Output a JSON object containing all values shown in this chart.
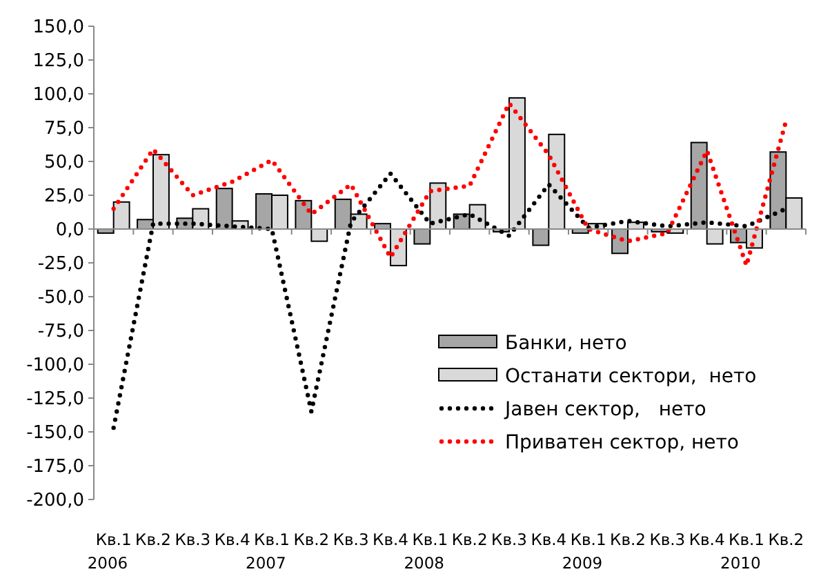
{
  "chart_data": {
    "type": "bar",
    "categories": [
      "Кв.1\n2006",
      "Кв.2",
      "Кв.3",
      "Кв.4",
      "Кв.1\n2007",
      "Кв.2",
      "Кв.3",
      "Кв.4",
      "Кв.1\n2008",
      "Кв.2",
      "Кв.3",
      "Кв.4",
      "Кв.1\n2009",
      "Кв.2",
      "Кв.3",
      "Кв.4",
      "Кв.1\n2010",
      "Кв.2"
    ],
    "series": [
      {
        "name": "Банки, нето",
        "color": "#a6a6a6",
        "values": [
          -3,
          7,
          8,
          30,
          26,
          21,
          22,
          4,
          -11,
          11,
          -2,
          -12,
          -3,
          -18,
          -2,
          64,
          -10,
          57
        ]
      },
      {
        "name": "Останати сектори,  нето",
        "color": "#d9d9d9",
        "values": [
          20,
          55,
          15,
          6,
          25,
          -9,
          11,
          -27,
          34,
          18,
          97,
          70,
          4,
          5,
          -3,
          -11,
          -14,
          23
        ]
      },
      {
        "name": "Јавен сектор,   нето",
        "type": "line",
        "color": "#000000",
        "line_style": "dotted",
        "values": [
          -147,
          4,
          4,
          2,
          0,
          -135,
          5,
          41,
          4,
          11,
          -5,
          33,
          1,
          6,
          2,
          5,
          2,
          15
        ]
      },
      {
        "name": "Приватен сектор, нето",
        "type": "line",
        "color": "#ff0000",
        "line_style": "dotted",
        "values": [
          15,
          59,
          25,
          35,
          51,
          11,
          33,
          -21,
          28,
          32,
          93,
          55,
          0,
          -9,
          -3,
          58,
          -27,
          80
        ]
      }
    ],
    "ylim": [
      -200,
      150
    ],
    "yticks": [
      {
        "value": -200,
        "label": "-200,0"
      },
      {
        "value": -175,
        "label": "-175,0"
      },
      {
        "value": -150,
        "label": "-150,0"
      },
      {
        "value": -125,
        "label": "-125,0"
      },
      {
        "value": -100,
        "label": "-100,0"
      },
      {
        "value": -75,
        "label": "-75,0"
      },
      {
        "value": -50,
        "label": "-50,0"
      },
      {
        "value": -25,
        "label": "-25,0"
      },
      {
        "value": 0,
        "label": "0,0"
      },
      {
        "value": 25,
        "label": "25,0"
      },
      {
        "value": 50,
        "label": "50,0"
      },
      {
        "value": 75,
        "label": "75,0"
      },
      {
        "value": 100,
        "label": "100,0"
      },
      {
        "value": 125,
        "label": "125,0"
      },
      {
        "value": 150,
        "label": "150,0"
      }
    ],
    "legend": "bottom right"
  }
}
